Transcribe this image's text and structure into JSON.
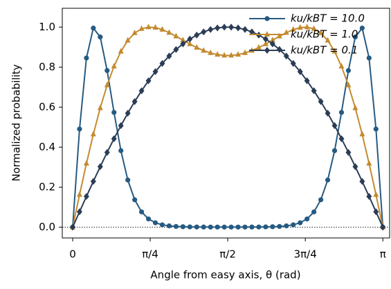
{
  "chart_data": {
    "type": "line",
    "xlabel": "Angle from easy axis, θ (rad)",
    "ylabel": "Normalized probability",
    "x": [
      0,
      0.0698,
      0.1396,
      0.2094,
      0.2793,
      0.3491,
      0.4189,
      0.4887,
      0.5585,
      0.6283,
      0.6981,
      0.7679,
      0.8378,
      0.9076,
      0.9774,
      1.0472,
      1.117,
      1.1868,
      1.2566,
      1.3265,
      1.3963,
      1.4661,
      1.5359,
      1.6057,
      1.6755,
      1.7453,
      1.8151,
      1.885,
      1.9548,
      2.0246,
      2.0944,
      2.1642,
      2.234,
      2.3038,
      2.3736,
      2.4435,
      2.5133,
      2.5831,
      2.6529,
      2.7227,
      2.7925,
      2.8623,
      2.9322,
      3.002,
      3.0718,
      3.1416
    ],
    "series": [
      {
        "name": "ku/kBT = 10.0",
        "color": "#255a82",
        "marker": "circle",
        "values": [
          0,
          0.4903,
          0.8456,
          0.9949,
          0.9506,
          0.7828,
          0.5735,
          0.3822,
          0.2356,
          0.1369,
          0.0761,
          0.0411,
          0.0219,
          0.0117,
          0.0063,
          0.0035,
          0.0021,
          0.0013,
          0.0008,
          0.0006,
          0.0004,
          0.0004,
          0.0003,
          0.0003,
          0.0004,
          0.0004,
          0.0006,
          0.0008,
          0.0013,
          0.0021,
          0.0035,
          0.0063,
          0.0117,
          0.0219,
          0.0411,
          0.0761,
          0.1369,
          0.2356,
          0.3822,
          0.5735,
          0.7828,
          0.9506,
          0.9949,
          0.8456,
          0.4903,
          0
        ]
      },
      {
        "name": "ku/kBT = 1.0",
        "color": "#c48a2f",
        "marker": "triangle",
        "values": [
          0,
          0.162,
          0.3183,
          0.4643,
          0.5956,
          0.7094,
          0.8037,
          0.8782,
          0.9331,
          0.9702,
          0.9915,
          0.9998,
          0.9974,
          0.9875,
          0.9721,
          0.9538,
          0.9344,
          0.9152,
          0.8976,
          0.8825,
          0.8706,
          0.8624,
          0.8583,
          0.8583,
          0.8624,
          0.8706,
          0.8825,
          0.8976,
          0.9152,
          0.9344,
          0.9538,
          0.9721,
          0.9875,
          0.9974,
          0.9998,
          0.9915,
          0.9702,
          0.9331,
          0.8782,
          0.8037,
          0.7094,
          0.5956,
          0.4643,
          0.3183,
          0.162,
          0
        ]
      },
      {
        "name": "ku/kBT = 0.1",
        "color": "#2b3d55",
        "marker": "diamond",
        "values": [
          0,
          0.0771,
          0.1535,
          0.2288,
          0.3023,
          0.3736,
          0.4421,
          0.5076,
          0.5694,
          0.6276,
          0.6817,
          0.7316,
          0.7771,
          0.8184,
          0.8554,
          0.8879,
          0.9162,
          0.9403,
          0.9601,
          0.976,
          0.9878,
          0.9956,
          0.9995,
          0.9995,
          0.9956,
          0.9878,
          0.976,
          0.9601,
          0.9403,
          0.9162,
          0.8879,
          0.8554,
          0.8184,
          0.7771,
          0.7316,
          0.6817,
          0.6276,
          0.5694,
          0.5076,
          0.4421,
          0.3736,
          0.3023,
          0.2288,
          0.1535,
          0.0771,
          0
        ]
      }
    ],
    "xlim": [
      -0.105,
      3.21
    ],
    "ylim": [
      -0.054,
      1.094
    ],
    "xticks": [
      0,
      {
        "value": 0.7854,
        "label": "π/4"
      },
      {
        "value": 1.5708,
        "label": "π/2"
      },
      {
        "value": 2.3562,
        "label": "3π/4"
      },
      {
        "value": 3.1416,
        "label": "π"
      }
    ],
    "yticks": [
      {
        "value": 0,
        "label": "0.0"
      },
      0.2,
      0.4,
      0.6,
      0.8,
      {
        "value": 1,
        "label": "1.0"
      }
    ],
    "reference_line": 0,
    "legend": "upper right",
    "grid": false
  }
}
